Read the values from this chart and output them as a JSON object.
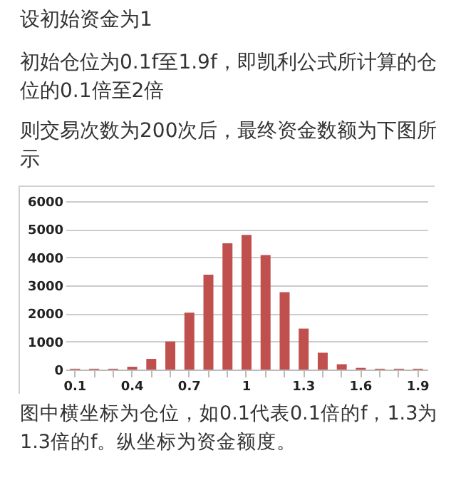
{
  "chart_data": {
    "type": "bar",
    "title": "设初始资金为1",
    "subtitle": "初始仓位为0.1f至1.9f，即凯利公式所计算的仓位的0.1倍至2倍",
    "annotations": [
      "则交易次数为200次后，最终资金数额为下图所示",
      "图中横坐标为仓位，如0.1代表0.1倍的f，1.3为1.3倍的f。纵坐标为资金额度。"
    ],
    "categories": [
      "0.1",
      null,
      null,
      "0.4",
      null,
      null,
      "0.7",
      null,
      null,
      "1",
      null,
      null,
      "1.3",
      null,
      null,
      "1.6",
      null,
      null,
      "1.9"
    ],
    "values": [
      30,
      30,
      30,
      100,
      380,
      1000,
      2030,
      3380,
      4500,
      4800,
      4080,
      2760,
      1460,
      600,
      190,
      60,
      30,
      30,
      30
    ],
    "color": "#c0504d",
    "ylim": [
      0,
      6000
    ],
    "yticks": [
      0,
      1000,
      2000,
      3000,
      4000,
      5000,
      6000
    ],
    "grid": "y"
  }
}
